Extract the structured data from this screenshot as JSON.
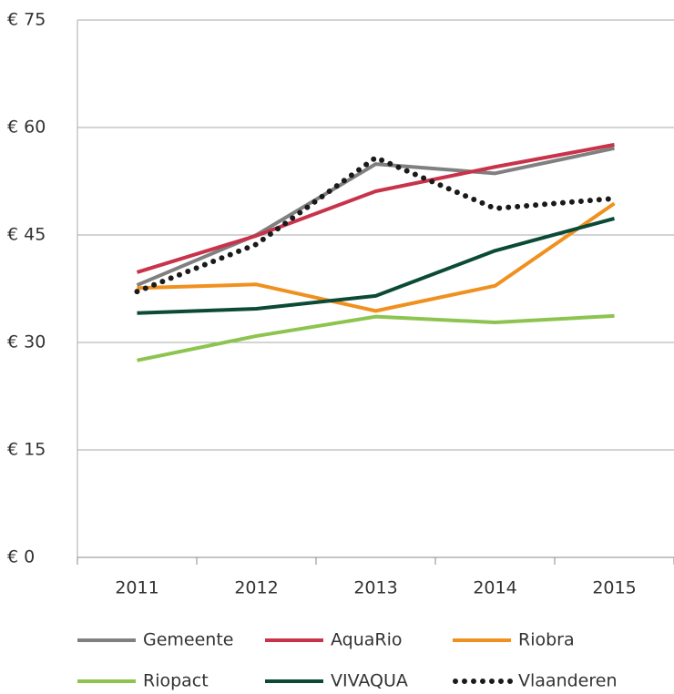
{
  "chart_data": {
    "type": "line",
    "categories": [
      "2011",
      "2012",
      "2013",
      "2014",
      "2015"
    ],
    "series": [
      {
        "name": "Gemeente",
        "color": "#808080",
        "values": [
          38.0,
          45.0,
          54.9,
          53.6,
          57.1
        ]
      },
      {
        "name": "AquaRio",
        "color": "#c8334a",
        "values": [
          39.8,
          44.9,
          51.1,
          54.5,
          57.6
        ]
      },
      {
        "name": "Riobra",
        "color": "#f0901e",
        "values": [
          37.6,
          38.1,
          34.4,
          37.9,
          49.4
        ]
      },
      {
        "name": "Riopact",
        "color": "#8dc44f",
        "values": [
          27.5,
          30.9,
          33.6,
          32.8,
          33.7
        ]
      },
      {
        "name": "VIVAQUA",
        "color": "#0b4a36",
        "values": [
          34.1,
          34.7,
          36.5,
          42.8,
          47.3
        ]
      },
      {
        "name": "Vlaanderen",
        "color": "#1a1a1a",
        "style": "dotted",
        "values": [
          37.1,
          43.7,
          55.8,
          48.7,
          50.1
        ]
      }
    ],
    "ylim": [
      0,
      75
    ],
    "yticks": [
      {
        "value": 0,
        "label": "€ 0"
      },
      {
        "value": 15,
        "label": "€ 15"
      },
      {
        "value": 30,
        "label": "€ 30"
      },
      {
        "value": 45,
        "label": "€ 45"
      },
      {
        "value": 60,
        "label": "€ 60"
      },
      {
        "value": 75,
        "label": "€ 75"
      }
    ],
    "grid": true,
    "legend": "bottom"
  }
}
